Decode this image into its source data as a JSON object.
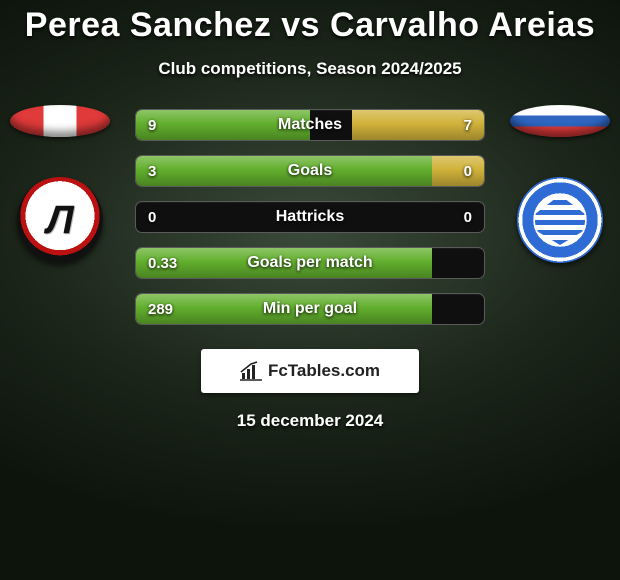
{
  "title": "Perea Sanchez vs Carvalho Areias",
  "subtitle": "Club competitions, Season 2024/2025",
  "date": "15 december 2024",
  "footer_text": "FcTables.com",
  "colors": {
    "left_fill": "#62af2d",
    "right_fill": "#d0b23a"
  },
  "max_left_pct": 85,
  "metrics": [
    {
      "label": "Matches",
      "left_val": "9",
      "right_val": "7",
      "left_pct": 50,
      "right_pct": 38
    },
    {
      "label": "Goals",
      "left_val": "3",
      "right_val": "0",
      "left_pct": 85,
      "right_pct": 15
    },
    {
      "label": "Hattricks",
      "left_val": "0",
      "right_val": "0",
      "left_pct": 0,
      "right_pct": 0
    },
    {
      "label": "Goals per match",
      "left_val": "0.33",
      "right_val": "",
      "left_pct": 85,
      "right_pct": 0
    },
    {
      "label": "Min per goal",
      "left_val": "289",
      "right_val": "",
      "left_pct": 85,
      "right_pct": 0
    }
  ]
}
